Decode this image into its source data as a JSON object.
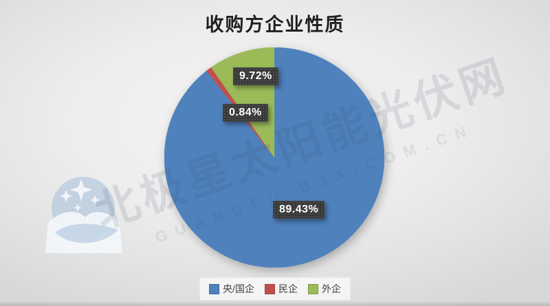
{
  "title": "收购方企业性质",
  "chart_data": {
    "type": "pie",
    "title": "收购方企业性质",
    "categories": [
      "央/国企",
      "民企",
      "外企"
    ],
    "values": [
      89.43,
      0.84,
      9.72
    ],
    "colors": [
      "#4F81BD",
      "#C0504D",
      "#9BBB59"
    ],
    "data_labels": [
      "89.43%",
      "0.84%",
      "9.72%"
    ],
    "start_angle_deg": 0,
    "direction": "clockwise",
    "legend_position": "bottom"
  },
  "legend": {
    "items": [
      {
        "label": "央/国企",
        "color": "#4F81BD"
      },
      {
        "label": "民企",
        "color": "#C0504D"
      },
      {
        "label": "外企",
        "color": "#9BBB59"
      }
    ]
  },
  "watermark": {
    "text_cn": "北极星太阳能光伏网",
    "text_latin": "GUANGFU.BJX.COM.CN",
    "logo": "bjx-polaris-logo",
    "logo_color": "#aabfdd",
    "star_color": "#f4f7fb"
  }
}
